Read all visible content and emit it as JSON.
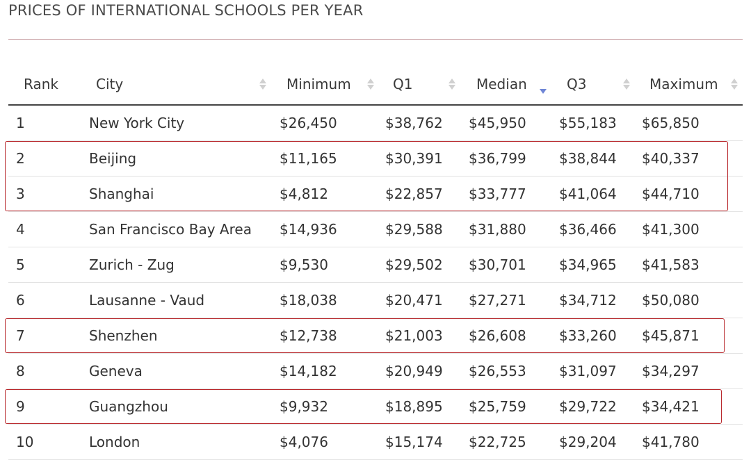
{
  "page": {
    "title": "PRICES OF INTERNATIONAL SCHOOLS PER YEAR"
  },
  "table": {
    "columns": [
      {
        "label": "Rank",
        "sortable": false
      },
      {
        "label": "City",
        "sortable": true,
        "sort": "none"
      },
      {
        "label": "Minimum",
        "sortable": true,
        "sort": "none"
      },
      {
        "label": "Q1",
        "sortable": true,
        "sort": "none"
      },
      {
        "label": "Median",
        "sortable": true,
        "sort": "descending"
      },
      {
        "label": "Q3",
        "sortable": true,
        "sort": "none"
      },
      {
        "label": "Maximum",
        "sortable": true,
        "sort": "none"
      }
    ],
    "rows": [
      {
        "rank": "1",
        "city": "New York City",
        "minimum": "$26,450",
        "q1": "$38,762",
        "median": "$45,950",
        "q3": "$55,183",
        "maximum": "$65,850"
      },
      {
        "rank": "2",
        "city": "Beijing",
        "minimum": "$11,165",
        "q1": "$30,391",
        "median": "$36,799",
        "q3": "$38,844",
        "maximum": "$40,337"
      },
      {
        "rank": "3",
        "city": "Shanghai",
        "minimum": "$4,812",
        "q1": "$22,857",
        "median": "$33,777",
        "q3": "$41,064",
        "maximum": "$44,710"
      },
      {
        "rank": "4",
        "city": "San Francisco Bay Area",
        "minimum": "$14,936",
        "q1": "$29,588",
        "median": "$31,880",
        "q3": "$36,466",
        "maximum": "$41,300"
      },
      {
        "rank": "5",
        "city": "Zurich - Zug",
        "minimum": "$9,530",
        "q1": "$29,502",
        "median": "$30,701",
        "q3": "$34,965",
        "maximum": "$41,583"
      },
      {
        "rank": "6",
        "city": "Lausanne - Vaud",
        "minimum": "$18,038",
        "q1": "$20,471",
        "median": "$27,271",
        "q3": "$34,712",
        "maximum": "$50,080"
      },
      {
        "rank": "7",
        "city": "Shenzhen",
        "minimum": "$12,738",
        "q1": "$21,003",
        "median": "$26,608",
        "q3": "$33,260",
        "maximum": "$45,871"
      },
      {
        "rank": "8",
        "city": "Geneva",
        "minimum": "$14,182",
        "q1": "$20,949",
        "median": "$26,553",
        "q3": "$31,097",
        "maximum": "$34,297"
      },
      {
        "rank": "9",
        "city": "Guangzhou",
        "minimum": "$9,932",
        "q1": "$18,895",
        "median": "$25,759",
        "q3": "$29,722",
        "maximum": "$34,421"
      },
      {
        "rank": "10",
        "city": "London",
        "minimum": "$4,076",
        "q1": "$15,174",
        "median": "$22,725",
        "q3": "$29,204",
        "maximum": "$41,780"
      }
    ],
    "highlighted_rows": [
      [
        2,
        3
      ],
      [
        7
      ],
      [
        9
      ]
    ]
  },
  "colors": {
    "highlight_border": "#b8282c",
    "title_rule": "#c9a0a4",
    "sort_active": "#6f86d6",
    "sort_inactive": "#d0d0d0"
  }
}
